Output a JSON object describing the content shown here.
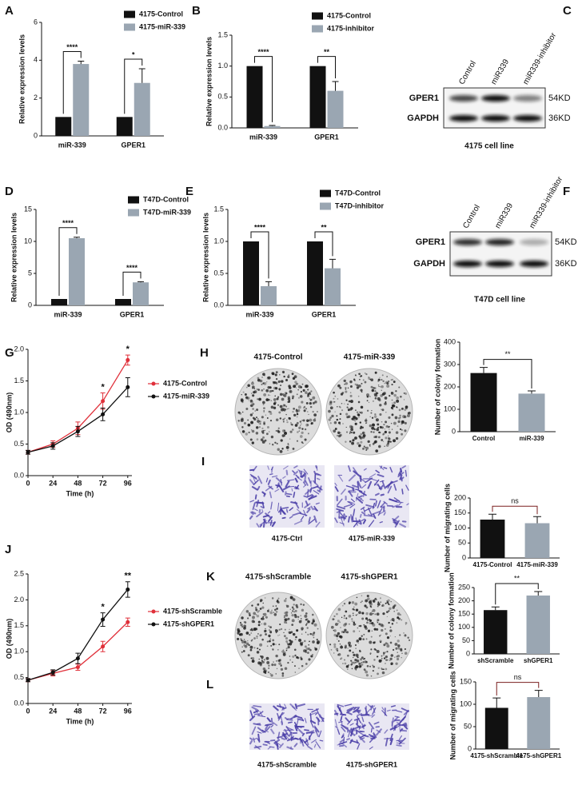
{
  "chart_data": [
    {
      "type": "bar",
      "label": "A",
      "categories": [
        "miR-339",
        "GPER1"
      ],
      "series": [
        {
          "name": "4175-Control",
          "color": "#111111",
          "values": [
            1,
            1
          ]
        },
        {
          "name": "4175-miR-339",
          "color": "#9aa6b2",
          "values": [
            3.8,
            2.8
          ],
          "errors": [
            0.15,
            0.75
          ]
        }
      ],
      "annotations": [
        "****",
        "*"
      ],
      "ylim": [
        0,
        6
      ],
      "yticks": [
        0,
        2,
        4,
        6
      ],
      "y_label": "Relative expression levels"
    },
    {
      "type": "bar",
      "label": "B",
      "categories": [
        "miR-339",
        "GPER1"
      ],
      "series": [
        {
          "name": "4175-Control",
          "color": "#111111",
          "values": [
            1,
            1
          ]
        },
        {
          "name": "4175-inhibitor",
          "color": "#9aa6b2",
          "values": [
            0.03,
            0.6
          ],
          "errors": [
            0.01,
            0.15
          ]
        }
      ],
      "annotations": [
        "****",
        "**"
      ],
      "ylim": [
        0,
        1.5
      ],
      "yticks": [
        {
          "value": 0,
          "label": "0.0"
        },
        0.5,
        {
          "value": 1,
          "label": "1.0"
        },
        1.5
      ],
      "y_label": "Relative expression levels"
    },
    {
      "type": "blot",
      "label": "C",
      "lanes": [
        "Control",
        "miR339",
        "miR339-inhibitor"
      ],
      "bands": [
        {
          "name": "GPER1",
          "size": "54KD"
        },
        {
          "name": "GAPDH",
          "size": "36KD"
        }
      ],
      "caption": "4175 cell line"
    },
    {
      "type": "bar",
      "label": "D",
      "categories": [
        "miR-339",
        "GPER1"
      ],
      "series": [
        {
          "name": "T47D-Control",
          "color": "#111111",
          "values": [
            1,
            1
          ]
        },
        {
          "name": "T47D-miR-339",
          "color": "#9aa6b2",
          "values": [
            10.5,
            3.6
          ],
          "errors": [
            0.15,
            0.1
          ]
        }
      ],
      "annotations": [
        "****",
        "****"
      ],
      "ylim": [
        0,
        15
      ],
      "yticks": [
        0,
        5,
        10,
        15
      ],
      "y_label": "Relative expression levels"
    },
    {
      "type": "bar",
      "label": "E",
      "categories": [
        "miR-339",
        "GPER1"
      ],
      "series": [
        {
          "name": "T47D-Control",
          "color": "#111111",
          "values": [
            1,
            1
          ]
        },
        {
          "name": "T47D-inhibitor",
          "color": "#9aa6b2",
          "values": [
            0.3,
            0.58
          ],
          "errors": [
            0.07,
            0.14
          ]
        }
      ],
      "annotations": [
        "****",
        "**"
      ],
      "ylim": [
        0,
        1.5
      ],
      "yticks": [
        {
          "value": 0,
          "label": "0.0"
        },
        0.5,
        {
          "value": 1,
          "label": "1.0"
        },
        1.5
      ],
      "y_label": "Relative expression levels"
    },
    {
      "type": "blot",
      "label": "F",
      "lanes": [
        "Control",
        "miR339",
        "miR339-inhibitor"
      ],
      "bands": [
        {
          "name": "GPER1",
          "size": "54KD"
        },
        {
          "name": "GAPDH",
          "size": "36KD"
        }
      ],
      "caption": "T47D cell line"
    },
    {
      "type": "line",
      "label": "G",
      "x": [
        0,
        24,
        48,
        72,
        96
      ],
      "series": [
        {
          "name": "4175-Control",
          "color": "#e0303a",
          "values": [
            0.37,
            0.5,
            0.75,
            1.18,
            1.83
          ],
          "errors": [
            0.03,
            0.05,
            0.1,
            0.13,
            0.08
          ]
        },
        {
          "name": "4175-miR-339",
          "color": "#111111",
          "values": [
            0.37,
            0.47,
            0.7,
            0.97,
            1.4
          ],
          "errors": [
            0.03,
            0.05,
            0.08,
            0.1,
            0.15
          ]
        }
      ],
      "annotations": [
        {
          "x": 72,
          "text": "*"
        },
        {
          "x": 96,
          "text": "*"
        }
      ],
      "xlim": [
        0,
        100
      ],
      "xticks": [
        0,
        24,
        48,
        72,
        96
      ],
      "ylim": [
        0,
        2
      ],
      "yticks": [
        {
          "value": 0,
          "label": "0.0"
        },
        0.5,
        {
          "value": 1,
          "label": "1.0"
        },
        1.5,
        {
          "value": 2,
          "label": "2.0"
        }
      ],
      "x_label": "Time (h)",
      "y_label": "OD (490nm)"
    },
    {
      "type": "bar",
      "label": "H",
      "image_kind": "colony",
      "images": [
        "4175-Control",
        "4175-miR-339"
      ],
      "categories": [
        "Control",
        "miR-339"
      ],
      "values": [
        262,
        170
      ],
      "errors": [
        25,
        12
      ],
      "colors": [
        "#111111",
        "#9aa6b2"
      ],
      "annotation": "**",
      "ylim": [
        0,
        400
      ],
      "yticks": [
        0,
        100,
        200,
        300,
        400
      ],
      "y_label": "Number of colony formation"
    },
    {
      "type": "bar",
      "label": "I",
      "image_kind": "migration",
      "images": [
        "4175-Ctrl",
        "4175-miR-339"
      ],
      "categories": [
        "4175-Control",
        "4175-miR-339"
      ],
      "values": [
        128,
        116
      ],
      "errors": [
        18,
        22
      ],
      "colors": [
        "#111111",
        "#9aa6b2"
      ],
      "annotation": "ns",
      "ylim": [
        0,
        200
      ],
      "yticks": [
        0,
        50,
        100,
        150,
        200
      ],
      "y_label": "Number of migrating cells"
    },
    {
      "type": "line",
      "label": "J",
      "x": [
        0,
        24,
        48,
        72,
        96
      ],
      "series": [
        {
          "name": "4175-shScramble",
          "color": "#e0303a",
          "values": [
            0.45,
            0.58,
            0.7,
            1.1,
            1.57
          ],
          "errors": [
            0.03,
            0.05,
            0.06,
            0.1,
            0.08
          ]
        },
        {
          "name": "4175-shGPER1",
          "color": "#111111",
          "values": [
            0.45,
            0.6,
            0.87,
            1.62,
            2.2
          ],
          "errors": [
            0.03,
            0.05,
            0.1,
            0.13,
            0.15
          ]
        }
      ],
      "annotations": [
        {
          "x": 72,
          "text": "*"
        },
        {
          "x": 96,
          "text": "**"
        }
      ],
      "xlim": [
        0,
        100
      ],
      "xticks": [
        0,
        24,
        48,
        72,
        96
      ],
      "ylim": [
        0,
        2.5
      ],
      "yticks": [
        {
          "value": 0,
          "label": "0.0"
        },
        0.5,
        {
          "value": 1,
          "label": "1.0"
        },
        1.5,
        {
          "value": 2,
          "label": "2.0"
        },
        2.5
      ],
      "x_label": "Time (h)",
      "y_label": "OD (490nm)"
    },
    {
      "type": "bar",
      "label": "K",
      "image_kind": "colony",
      "images": [
        "4175-shScramble",
        "4175-shGPER1"
      ],
      "categories": [
        "shScramble",
        "shGPER1"
      ],
      "values": [
        165,
        220
      ],
      "errors": [
        12,
        15
      ],
      "colors": [
        "#111111",
        "#9aa6b2"
      ],
      "annotation": "**",
      "ylim": [
        0,
        250
      ],
      "yticks": [
        0,
        50,
        100,
        150,
        200,
        250
      ],
      "y_label": "Number of colony formation"
    },
    {
      "type": "bar",
      "label": "L",
      "image_kind": "migration",
      "images": [
        "4175-shScramble",
        "4175-shGPER1"
      ],
      "categories": [
        "4175-shScramble",
        "4175-shGPER1"
      ],
      "values": [
        92,
        116
      ],
      "errors": [
        22,
        15
      ],
      "colors": [
        "#111111",
        "#9aa6b2"
      ],
      "annotation": "ns",
      "ylim": [
        0,
        150
      ],
      "yticks": [
        0,
        50,
        100,
        150
      ],
      "y_label": "Number of migrating cells"
    }
  ]
}
